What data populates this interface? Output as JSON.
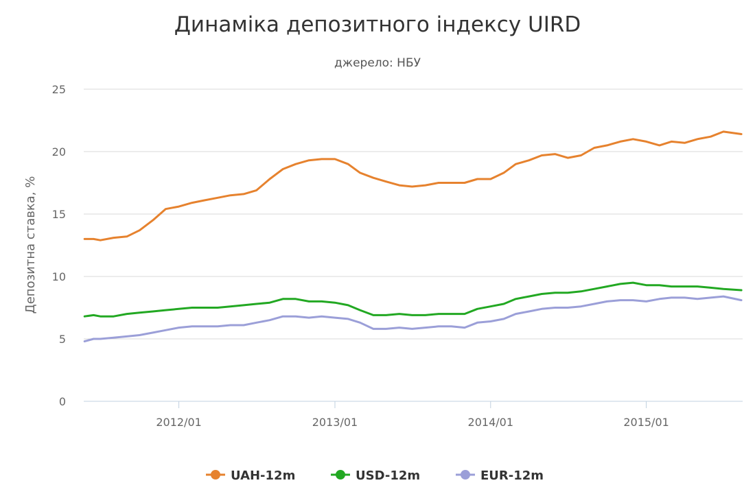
{
  "chart_data": {
    "type": "line",
    "title": "Динаміка депозитного індексу UIRD",
    "subtitle": "джерело: НБУ",
    "ylabel": "Депозитна ставка, %",
    "xlabel": "",
    "ylim": [
      0,
      25
    ],
    "yticks": [
      "0",
      "5",
      "10",
      "15",
      "20",
      "25"
    ],
    "xlim": [
      "2011-05-23",
      "2015-08-15"
    ],
    "xticks": [
      {
        "label": "2012/01",
        "date": "2012-01-01"
      },
      {
        "label": "2013/01",
        "date": "2013-01-01"
      },
      {
        "label": "2014/01",
        "date": "2014-01-01"
      },
      {
        "label": "2015/01",
        "date": "2015-01-01"
      }
    ],
    "grid": true,
    "legend_position": "bottom-center",
    "series": [
      {
        "name": "UAH-12m",
        "color": "#e6822e",
        "points": [
          [
            "2011-05-25",
            13.0
          ],
          [
            "2011-06-15",
            13.0
          ],
          [
            "2011-07-01",
            12.9
          ],
          [
            "2011-08-01",
            13.1
          ],
          [
            "2011-09-01",
            13.2
          ],
          [
            "2011-10-01",
            13.7
          ],
          [
            "2011-11-01",
            14.5
          ],
          [
            "2011-12-01",
            15.4
          ],
          [
            "2012-01-01",
            15.6
          ],
          [
            "2012-02-01",
            15.9
          ],
          [
            "2012-03-01",
            16.1
          ],
          [
            "2012-04-01",
            16.3
          ],
          [
            "2012-05-01",
            16.5
          ],
          [
            "2012-06-01",
            16.6
          ],
          [
            "2012-07-01",
            16.9
          ],
          [
            "2012-08-01",
            17.8
          ],
          [
            "2012-09-01",
            18.6
          ],
          [
            "2012-10-01",
            19.0
          ],
          [
            "2012-11-01",
            19.3
          ],
          [
            "2012-12-01",
            19.4
          ],
          [
            "2013-01-01",
            19.4
          ],
          [
            "2013-02-01",
            19.0
          ],
          [
            "2013-03-01",
            18.3
          ],
          [
            "2013-04-01",
            17.9
          ],
          [
            "2013-05-01",
            17.6
          ],
          [
            "2013-06-01",
            17.3
          ],
          [
            "2013-07-01",
            17.2
          ],
          [
            "2013-08-01",
            17.3
          ],
          [
            "2013-09-01",
            17.5
          ],
          [
            "2013-10-01",
            17.5
          ],
          [
            "2013-11-01",
            17.5
          ],
          [
            "2013-12-01",
            17.8
          ],
          [
            "2014-01-01",
            17.8
          ],
          [
            "2014-02-01",
            18.3
          ],
          [
            "2014-03-01",
            19.0
          ],
          [
            "2014-04-01",
            19.3
          ],
          [
            "2014-05-01",
            19.7
          ],
          [
            "2014-06-01",
            19.8
          ],
          [
            "2014-07-01",
            19.5
          ],
          [
            "2014-08-01",
            19.7
          ],
          [
            "2014-09-01",
            20.3
          ],
          [
            "2014-10-01",
            20.5
          ],
          [
            "2014-11-01",
            20.8
          ],
          [
            "2014-12-01",
            21.0
          ],
          [
            "2015-01-01",
            20.8
          ],
          [
            "2015-02-01",
            20.5
          ],
          [
            "2015-03-01",
            20.8
          ],
          [
            "2015-04-01",
            20.7
          ],
          [
            "2015-05-01",
            21.0
          ],
          [
            "2015-06-01",
            21.2
          ],
          [
            "2015-07-01",
            21.6
          ],
          [
            "2015-08-12",
            21.4
          ]
        ]
      },
      {
        "name": "USD-12m",
        "color": "#22a822",
        "points": [
          [
            "2011-05-25",
            6.8
          ],
          [
            "2011-06-15",
            6.9
          ],
          [
            "2011-07-01",
            6.8
          ],
          [
            "2011-08-01",
            6.8
          ],
          [
            "2011-09-01",
            7.0
          ],
          [
            "2011-10-01",
            7.1
          ],
          [
            "2011-11-01",
            7.2
          ],
          [
            "2011-12-01",
            7.3
          ],
          [
            "2012-01-01",
            7.4
          ],
          [
            "2012-02-01",
            7.5
          ],
          [
            "2012-03-01",
            7.5
          ],
          [
            "2012-04-01",
            7.5
          ],
          [
            "2012-05-01",
            7.6
          ],
          [
            "2012-06-01",
            7.7
          ],
          [
            "2012-07-01",
            7.8
          ],
          [
            "2012-08-01",
            7.9
          ],
          [
            "2012-09-01",
            8.2
          ],
          [
            "2012-10-01",
            8.2
          ],
          [
            "2012-11-01",
            8.0
          ],
          [
            "2012-12-01",
            8.0
          ],
          [
            "2013-01-01",
            7.9
          ],
          [
            "2013-02-01",
            7.7
          ],
          [
            "2013-03-01",
            7.3
          ],
          [
            "2013-04-01",
            6.9
          ],
          [
            "2013-05-01",
            6.9
          ],
          [
            "2013-06-01",
            7.0
          ],
          [
            "2013-07-01",
            6.9
          ],
          [
            "2013-08-01",
            6.9
          ],
          [
            "2013-09-01",
            7.0
          ],
          [
            "2013-10-01",
            7.0
          ],
          [
            "2013-11-01",
            7.0
          ],
          [
            "2013-12-01",
            7.4
          ],
          [
            "2014-01-01",
            7.6
          ],
          [
            "2014-02-01",
            7.8
          ],
          [
            "2014-03-01",
            8.2
          ],
          [
            "2014-04-01",
            8.4
          ],
          [
            "2014-05-01",
            8.6
          ],
          [
            "2014-06-01",
            8.7
          ],
          [
            "2014-07-01",
            8.7
          ],
          [
            "2014-08-01",
            8.8
          ],
          [
            "2014-09-01",
            9.0
          ],
          [
            "2014-10-01",
            9.2
          ],
          [
            "2014-11-01",
            9.4
          ],
          [
            "2014-12-01",
            9.5
          ],
          [
            "2015-01-01",
            9.3
          ],
          [
            "2015-02-01",
            9.3
          ],
          [
            "2015-03-01",
            9.2
          ],
          [
            "2015-04-01",
            9.2
          ],
          [
            "2015-05-01",
            9.2
          ],
          [
            "2015-06-01",
            9.1
          ],
          [
            "2015-07-01",
            9.0
          ],
          [
            "2015-08-12",
            8.9
          ]
        ]
      },
      {
        "name": "EUR-12m",
        "color": "#9b9fd8",
        "points": [
          [
            "2011-05-25",
            4.8
          ],
          [
            "2011-06-15",
            5.0
          ],
          [
            "2011-07-01",
            5.0
          ],
          [
            "2011-08-01",
            5.1
          ],
          [
            "2011-09-01",
            5.2
          ],
          [
            "2011-10-01",
            5.3
          ],
          [
            "2011-11-01",
            5.5
          ],
          [
            "2011-12-01",
            5.7
          ],
          [
            "2012-01-01",
            5.9
          ],
          [
            "2012-02-01",
            6.0
          ],
          [
            "2012-03-01",
            6.0
          ],
          [
            "2012-04-01",
            6.0
          ],
          [
            "2012-05-01",
            6.1
          ],
          [
            "2012-06-01",
            6.1
          ],
          [
            "2012-07-01",
            6.3
          ],
          [
            "2012-08-01",
            6.5
          ],
          [
            "2012-09-01",
            6.8
          ],
          [
            "2012-10-01",
            6.8
          ],
          [
            "2012-11-01",
            6.7
          ],
          [
            "2012-12-01",
            6.8
          ],
          [
            "2013-01-01",
            6.7
          ],
          [
            "2013-02-01",
            6.6
          ],
          [
            "2013-03-01",
            6.3
          ],
          [
            "2013-04-01",
            5.8
          ],
          [
            "2013-05-01",
            5.8
          ],
          [
            "2013-06-01",
            5.9
          ],
          [
            "2013-07-01",
            5.8
          ],
          [
            "2013-08-01",
            5.9
          ],
          [
            "2013-09-01",
            6.0
          ],
          [
            "2013-10-01",
            6.0
          ],
          [
            "2013-11-01",
            5.9
          ],
          [
            "2013-12-01",
            6.3
          ],
          [
            "2014-01-01",
            6.4
          ],
          [
            "2014-02-01",
            6.6
          ],
          [
            "2014-03-01",
            7.0
          ],
          [
            "2014-04-01",
            7.2
          ],
          [
            "2014-05-01",
            7.4
          ],
          [
            "2014-06-01",
            7.5
          ],
          [
            "2014-07-01",
            7.5
          ],
          [
            "2014-08-01",
            7.6
          ],
          [
            "2014-09-01",
            7.8
          ],
          [
            "2014-10-01",
            8.0
          ],
          [
            "2014-11-01",
            8.1
          ],
          [
            "2014-12-01",
            8.1
          ],
          [
            "2015-01-01",
            8.0
          ],
          [
            "2015-02-01",
            8.2
          ],
          [
            "2015-03-01",
            8.3
          ],
          [
            "2015-04-01",
            8.3
          ],
          [
            "2015-05-01",
            8.2
          ],
          [
            "2015-06-01",
            8.3
          ],
          [
            "2015-07-01",
            8.4
          ],
          [
            "2015-08-12",
            8.1
          ]
        ]
      }
    ]
  }
}
